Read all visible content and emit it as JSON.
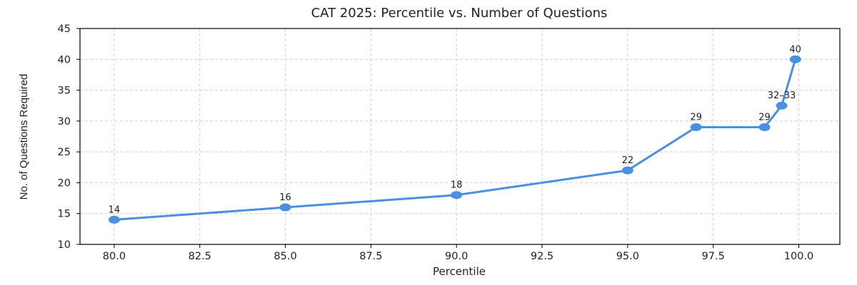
{
  "chart_data": {
    "type": "line",
    "title": "CAT 2025: Percentile vs. Number of Questions",
    "xlabel": "Percentile",
    "ylabel": "No. of Questions Required",
    "xlim": [
      79,
      101.2
    ],
    "ylim": [
      10,
      45
    ],
    "x_ticks": [
      80.0,
      82.5,
      85.0,
      87.5,
      90.0,
      92.5,
      95.0,
      97.5,
      100.0
    ],
    "x_tick_labels": [
      "80.0",
      "82.5",
      "85.0",
      "87.5",
      "90.0",
      "92.5",
      "95.0",
      "97.5",
      "100.0"
    ],
    "y_ticks": [
      10,
      15,
      20,
      25,
      30,
      35,
      40,
      45
    ],
    "y_tick_labels": [
      "10",
      "15",
      "20",
      "25",
      "30",
      "35",
      "40",
      "45"
    ],
    "grid": true,
    "legend": "none",
    "series": [
      {
        "color": "#4a8fe0",
        "points": [
          {
            "x": 80,
            "y": 14,
            "label": "14"
          },
          {
            "x": 85,
            "y": 16,
            "label": "16"
          },
          {
            "x": 90,
            "y": 18,
            "label": "18"
          },
          {
            "x": 95,
            "y": 22,
            "label": "22"
          },
          {
            "x": 97,
            "y": 29,
            "label": "29"
          },
          {
            "x": 99,
            "y": 29,
            "label": "29"
          },
          {
            "x": 99.5,
            "y": 32.5,
            "label": "32–33"
          },
          {
            "x": 99.9,
            "y": 40,
            "label": "40"
          }
        ]
      }
    ]
  }
}
